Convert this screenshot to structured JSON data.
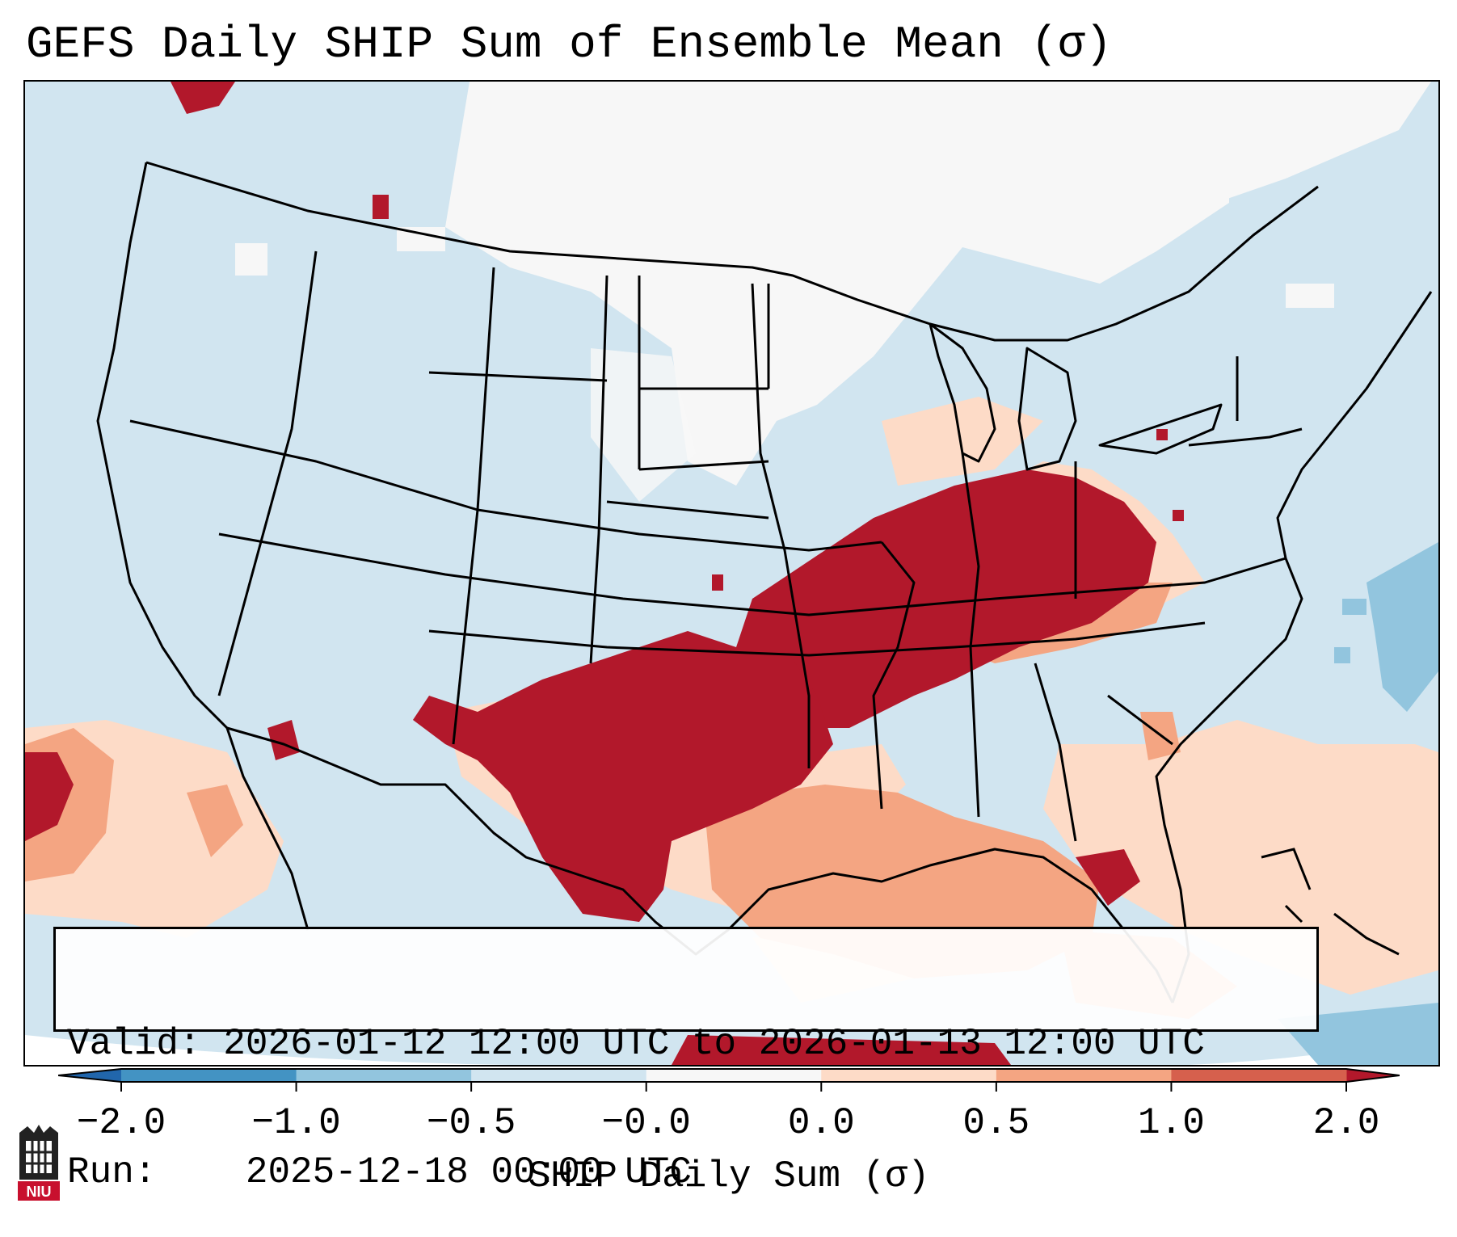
{
  "title": "GEFS Daily SHIP Sum of Ensemble Mean (σ)",
  "info": {
    "valid_label": "Valid:",
    "valid_value": "2026-01-12 12:00 UTC to 2026-01-13 12:00 UTC",
    "run_label": "Run:",
    "run_value": "2025-12-18 00:00 UTC"
  },
  "colorbar": {
    "label": "SHIP Daily Sum (σ)",
    "ticks": [
      "−2.0",
      "−1.0",
      "−0.5",
      "−0.0",
      "0.0",
      "0.5",
      "1.0",
      "2.0"
    ],
    "colors": [
      "#4393c3",
      "#92c5de",
      "#d1e5f0",
      "#f7f7f7",
      "#fddbc7",
      "#f4a582",
      "#d6604d",
      "#b2182b"
    ],
    "extend_min_color": "#2166ac",
    "extend_max_color": "#b2182b"
  },
  "map": {
    "projection": "Lambert Conformal (CONUS)",
    "regions": "Contiguous United States, southern Canada, northern Mexico, Gulf of Mexico, western Atlantic"
  },
  "logo": {
    "text": "NIU",
    "color": "#c8102e"
  }
}
